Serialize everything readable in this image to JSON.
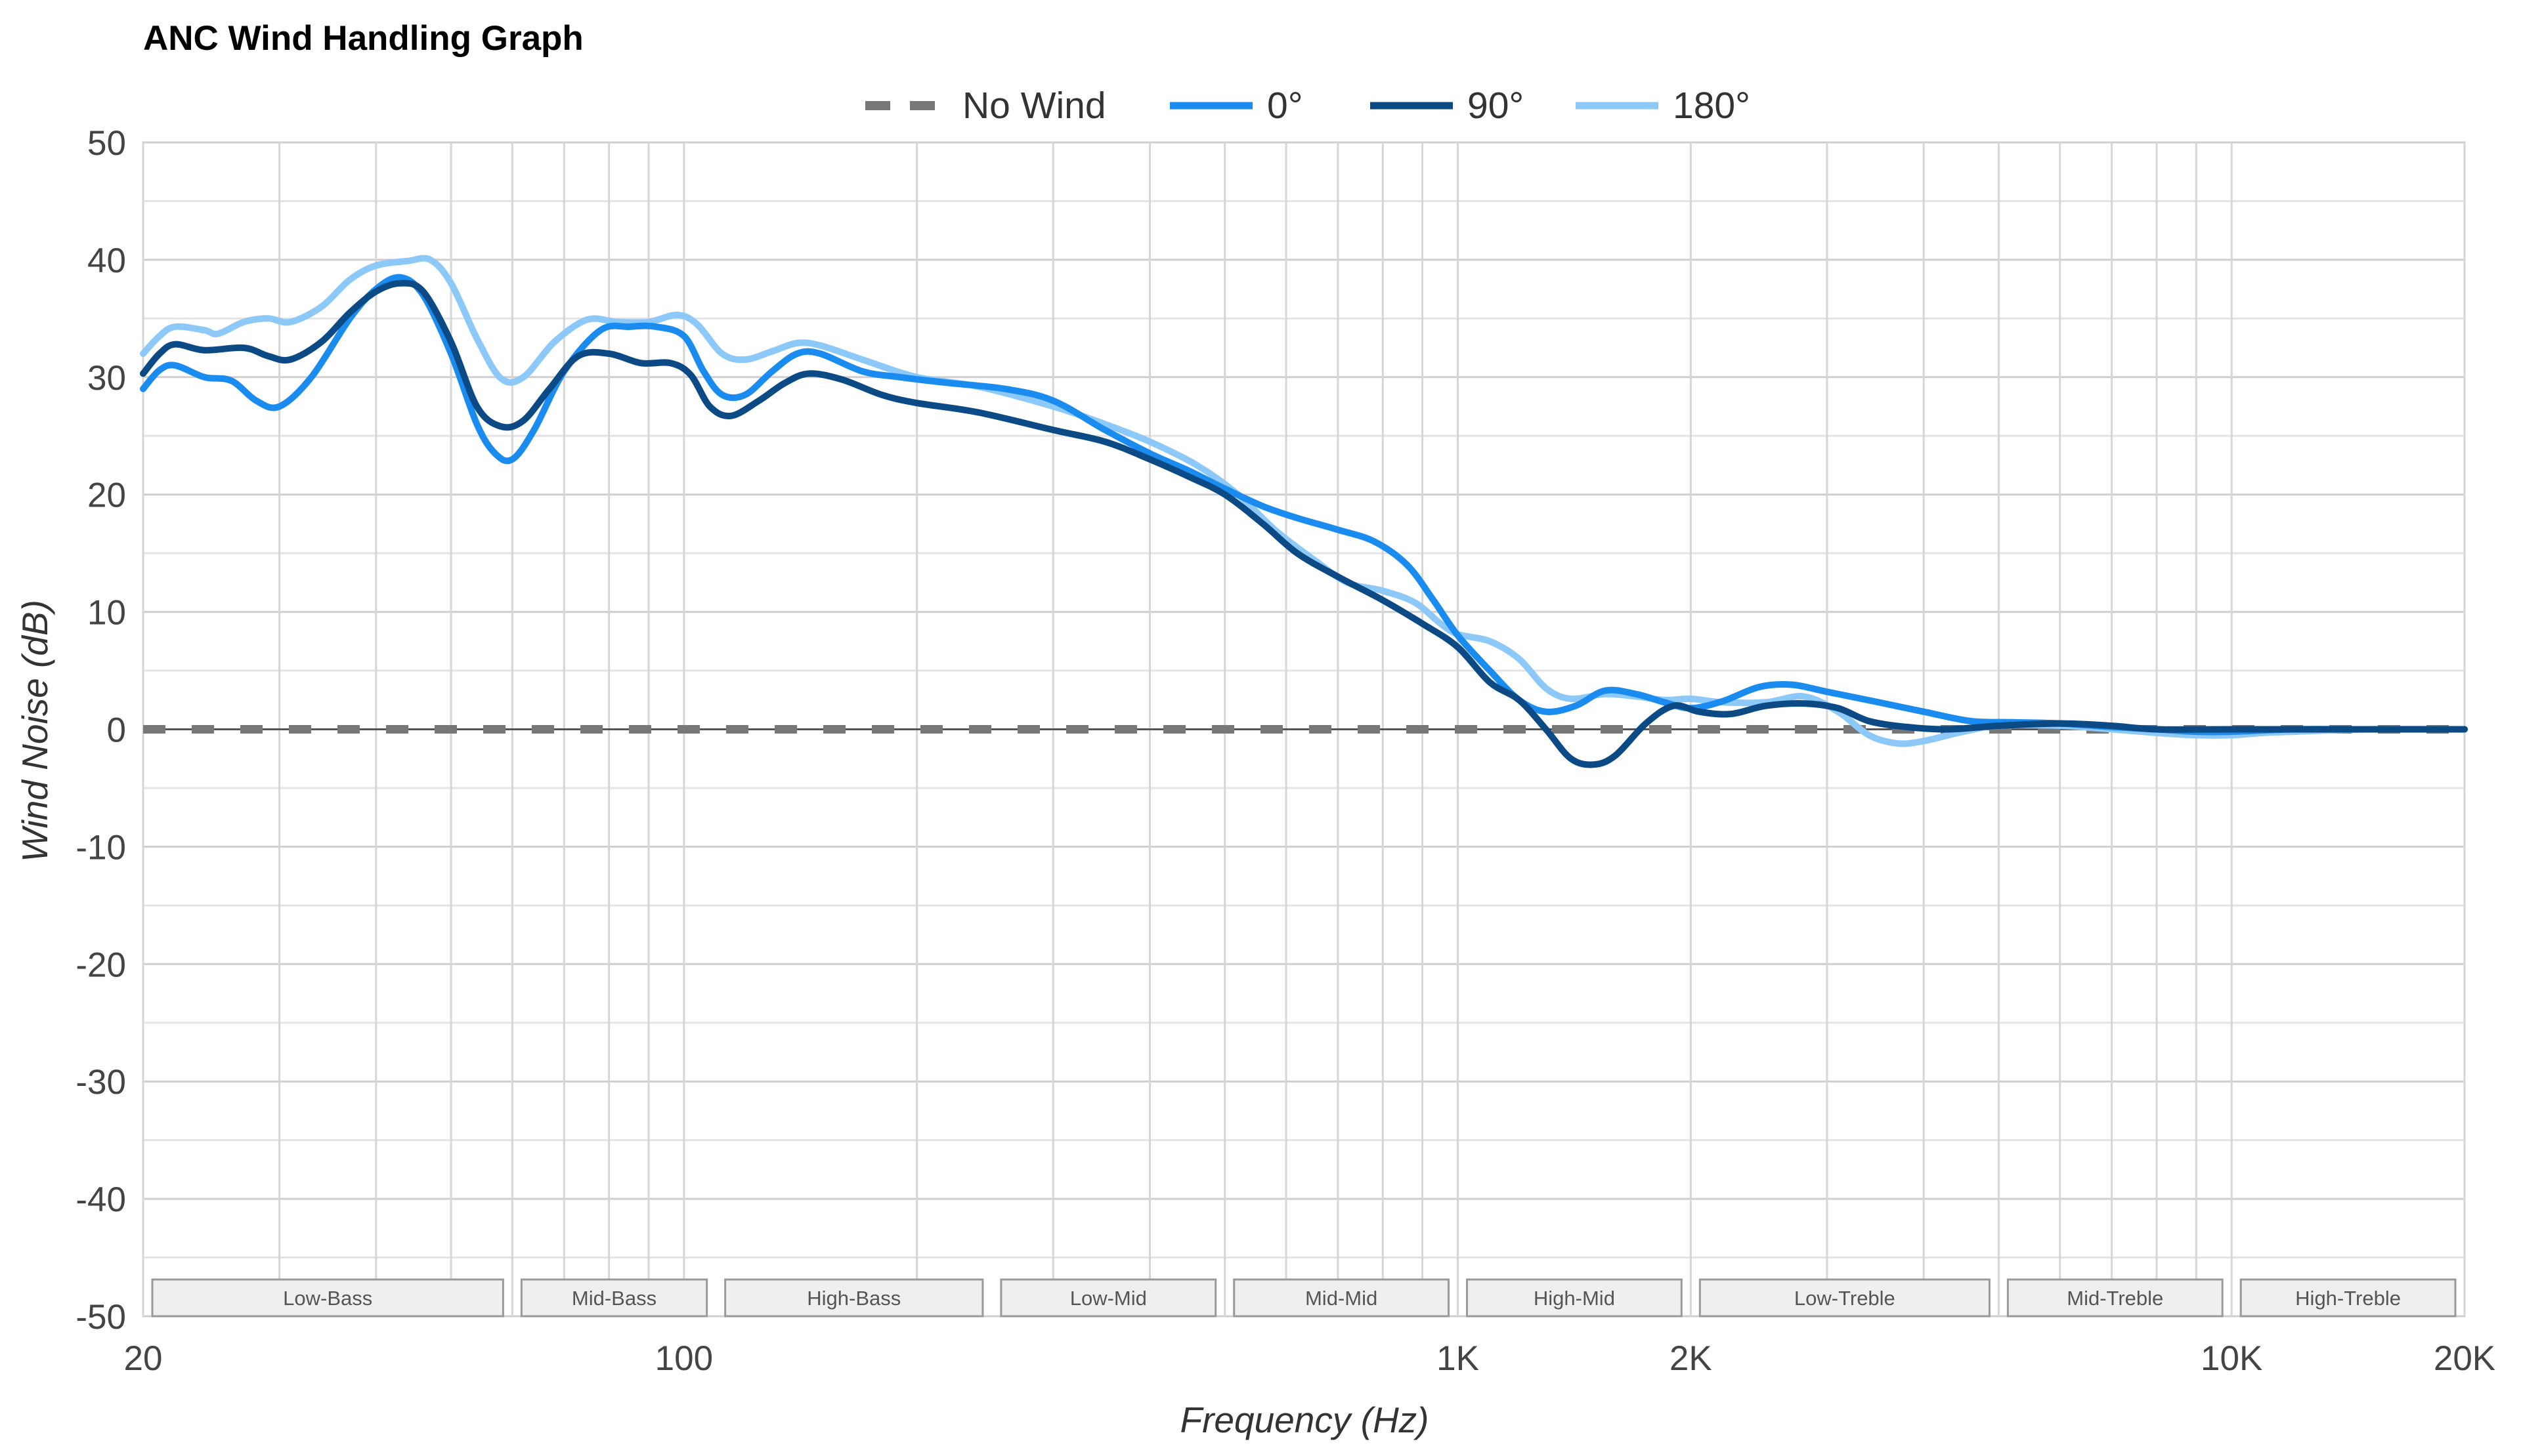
{
  "chart_data": {
    "type": "line",
    "title": "ANC Wind Handling Graph",
    "xlabel": "Frequency (Hz)",
    "ylabel": "Wind Noise (dB)",
    "xscale": "log",
    "xlim": [
      20,
      20000
    ],
    "ylim": [
      -50,
      50
    ],
    "grid": true,
    "legend_position": "top-center",
    "x_ticks": [
      {
        "value": 20,
        "label": "20"
      },
      {
        "value": 100,
        "label": "100"
      },
      {
        "value": 1000,
        "label": "1K"
      },
      {
        "value": 2000,
        "label": "2K"
      },
      {
        "value": 10000,
        "label": "10K"
      },
      {
        "value": 20000,
        "label": "20K"
      }
    ],
    "y_ticks": [
      {
        "value": 50,
        "label": "50"
      },
      {
        "value": 40,
        "label": "40"
      },
      {
        "value": 30,
        "label": "30"
      },
      {
        "value": 20,
        "label": "20"
      },
      {
        "value": 10,
        "label": "10"
      },
      {
        "value": 0,
        "label": "0"
      },
      {
        "value": -10,
        "label": "-10"
      },
      {
        "value": -20,
        "label": "-20"
      },
      {
        "value": -30,
        "label": "-30"
      },
      {
        "value": -40,
        "label": "-40"
      },
      {
        "value": -50,
        "label": "-50"
      }
    ],
    "bands": [
      {
        "label": "Low-Bass",
        "range": [
          20,
          60
        ]
      },
      {
        "label": "Mid-Bass",
        "range": [
          60,
          110
        ]
      },
      {
        "label": "High-Bass",
        "range": [
          110,
          250
        ]
      },
      {
        "label": "Low-Mid",
        "range": [
          250,
          500
        ]
      },
      {
        "label": "Mid-Mid",
        "range": [
          500,
          1000
        ]
      },
      {
        "label": "High-Mid",
        "range": [
          1000,
          2000
        ]
      },
      {
        "label": "Low-Treble",
        "range": [
          2000,
          5000
        ]
      },
      {
        "label": "Mid-Treble",
        "range": [
          5000,
          10000
        ]
      },
      {
        "label": "High-Treble",
        "range": [
          10000,
          20000
        ]
      }
    ],
    "series": [
      {
        "name": "No Wind",
        "color": "#777777",
        "dashed": true,
        "points": [
          [
            20,
            0
          ],
          [
            20000,
            0
          ]
        ]
      },
      {
        "name": "0°",
        "color": "#1a8cf0",
        "dashed": false,
        "points": [
          [
            20,
            29
          ],
          [
            21,
            30.6
          ],
          [
            22,
            31
          ],
          [
            24,
            30
          ],
          [
            26,
            29.7
          ],
          [
            28,
            28
          ],
          [
            30,
            27.5
          ],
          [
            33,
            30
          ],
          [
            37,
            35
          ],
          [
            40,
            37.5
          ],
          [
            43,
            38.5
          ],
          [
            46,
            37
          ],
          [
            50,
            32
          ],
          [
            54,
            26
          ],
          [
            57,
            23.5
          ],
          [
            60,
            23
          ],
          [
            64,
            25.5
          ],
          [
            70,
            30.5
          ],
          [
            78,
            34
          ],
          [
            85,
            34.3
          ],
          [
            92,
            34.3
          ],
          [
            100,
            33.5
          ],
          [
            106,
            30.5
          ],
          [
            112,
            28.5
          ],
          [
            120,
            28.5
          ],
          [
            130,
            30.5
          ],
          [
            140,
            32
          ],
          [
            150,
            32
          ],
          [
            170,
            30.5
          ],
          [
            190,
            30
          ],
          [
            220,
            29.5
          ],
          [
            260,
            29
          ],
          [
            300,
            28
          ],
          [
            350,
            25.5
          ],
          [
            400,
            23.5
          ],
          [
            450,
            22
          ],
          [
            500,
            20.5
          ],
          [
            560,
            19
          ],
          [
            620,
            18
          ],
          [
            700,
            17
          ],
          [
            780,
            16
          ],
          [
            860,
            14
          ],
          [
            930,
            11
          ],
          [
            1000,
            8
          ],
          [
            1100,
            5
          ],
          [
            1200,
            2.5
          ],
          [
            1300,
            1.5
          ],
          [
            1420,
            2
          ],
          [
            1550,
            3.3
          ],
          [
            1700,
            3
          ],
          [
            1850,
            2.3
          ],
          [
            2000,
            1.8
          ],
          [
            2200,
            2.4
          ],
          [
            2450,
            3.6
          ],
          [
            2700,
            3.8
          ],
          [
            3000,
            3.2
          ],
          [
            3500,
            2.3
          ],
          [
            4000,
            1.5
          ],
          [
            4600,
            0.7
          ],
          [
            5200,
            0.6
          ],
          [
            6000,
            0.5
          ],
          [
            7000,
            0.2
          ],
          [
            8000,
            0
          ],
          [
            9000,
            -0.2
          ],
          [
            10000,
            -0.2
          ],
          [
            12000,
            0
          ],
          [
            15000,
            0
          ],
          [
            20000,
            0
          ]
        ]
      },
      {
        "name": "90°",
        "color": "#0c4a86",
        "dashed": false,
        "points": [
          [
            20,
            30.3
          ],
          [
            21,
            32
          ],
          [
            22,
            32.8
          ],
          [
            24,
            32.3
          ],
          [
            27,
            32.5
          ],
          [
            29,
            31.8
          ],
          [
            31,
            31.5
          ],
          [
            34,
            33
          ],
          [
            37,
            35.5
          ],
          [
            40,
            37.3
          ],
          [
            43,
            38
          ],
          [
            46,
            37.3
          ],
          [
            50,
            33
          ],
          [
            54,
            27.5
          ],
          [
            58,
            25.8
          ],
          [
            62,
            26.3
          ],
          [
            67,
            29
          ],
          [
            73,
            31.8
          ],
          [
            80,
            32
          ],
          [
            88,
            31.2
          ],
          [
            96,
            31.2
          ],
          [
            102,
            30.2
          ],
          [
            108,
            27.5
          ],
          [
            115,
            26.7
          ],
          [
            125,
            28
          ],
          [
            135,
            29.5
          ],
          [
            145,
            30.3
          ],
          [
            160,
            29.8
          ],
          [
            180,
            28.5
          ],
          [
            200,
            27.8
          ],
          [
            240,
            27
          ],
          [
            300,
            25.5
          ],
          [
            350,
            24.5
          ],
          [
            400,
            23
          ],
          [
            450,
            21.5
          ],
          [
            500,
            20
          ],
          [
            560,
            17.5
          ],
          [
            620,
            15
          ],
          [
            700,
            13
          ],
          [
            800,
            11
          ],
          [
            900,
            9
          ],
          [
            1000,
            7
          ],
          [
            1100,
            4
          ],
          [
            1200,
            2.5
          ],
          [
            1300,
            0
          ],
          [
            1400,
            -2.5
          ],
          [
            1500,
            -3
          ],
          [
            1600,
            -2.2
          ],
          [
            1750,
            0.5
          ],
          [
            1900,
            2
          ],
          [
            2050,
            1.5
          ],
          [
            2250,
            1.3
          ],
          [
            2500,
            2
          ],
          [
            2800,
            2.2
          ],
          [
            3100,
            1.8
          ],
          [
            3400,
            0.7
          ],
          [
            3800,
            0.2
          ],
          [
            4300,
            0
          ],
          [
            5000,
            0.3
          ],
          [
            6000,
            0.5
          ],
          [
            7000,
            0.3
          ],
          [
            8000,
            0
          ],
          [
            10000,
            0
          ],
          [
            20000,
            0
          ]
        ]
      },
      {
        "name": "180°",
        "color": "#8cc8f8",
        "dashed": false,
        "points": [
          [
            20,
            32
          ],
          [
            21,
            33.5
          ],
          [
            22,
            34.3
          ],
          [
            24,
            34
          ],
          [
            25,
            33.7
          ],
          [
            27,
            34.7
          ],
          [
            29,
            35
          ],
          [
            31,
            34.7
          ],
          [
            34,
            36
          ],
          [
            37,
            38.3
          ],
          [
            40,
            39.5
          ],
          [
            44,
            39.9
          ],
          [
            47,
            40
          ],
          [
            50,
            38
          ],
          [
            54,
            33.3
          ],
          [
            58,
            29.9
          ],
          [
            62,
            30
          ],
          [
            68,
            33
          ],
          [
            75,
            34.9
          ],
          [
            82,
            34.7
          ],
          [
            90,
            34.7
          ],
          [
            98,
            35.3
          ],
          [
            104,
            34.5
          ],
          [
            112,
            32
          ],
          [
            120,
            31.5
          ],
          [
            130,
            32.2
          ],
          [
            140,
            32.9
          ],
          [
            150,
            32.7
          ],
          [
            170,
            31.5
          ],
          [
            200,
            30
          ],
          [
            240,
            29.2
          ],
          [
            300,
            27.5
          ],
          [
            350,
            26
          ],
          [
            400,
            24.5
          ],
          [
            460,
            22.5
          ],
          [
            520,
            20
          ],
          [
            580,
            17
          ],
          [
            650,
            14.5
          ],
          [
            720,
            12.5
          ],
          [
            800,
            11.8
          ],
          [
            880,
            10.8
          ],
          [
            950,
            9
          ],
          [
            1000,
            8.1
          ],
          [
            1100,
            7.5
          ],
          [
            1200,
            6
          ],
          [
            1300,
            3.5
          ],
          [
            1400,
            2.6
          ],
          [
            1550,
            3
          ],
          [
            1700,
            2.8
          ],
          [
            1850,
            2.5
          ],
          [
            2000,
            2.6
          ],
          [
            2200,
            2.3
          ],
          [
            2500,
            2.3
          ],
          [
            2800,
            2.8
          ],
          [
            3100,
            1.5
          ],
          [
            3400,
            -0.5
          ],
          [
            3700,
            -1.2
          ],
          [
            4000,
            -1
          ],
          [
            4500,
            -0.2
          ],
          [
            5000,
            0.3
          ],
          [
            6000,
            0.3
          ],
          [
            7000,
            0
          ],
          [
            8000,
            -0.3
          ],
          [
            9000,
            -0.5
          ],
          [
            10000,
            -0.5
          ],
          [
            11000,
            -0.3
          ],
          [
            12000,
            -0.2
          ],
          [
            15000,
            0
          ],
          [
            20000,
            0
          ]
        ]
      }
    ]
  }
}
